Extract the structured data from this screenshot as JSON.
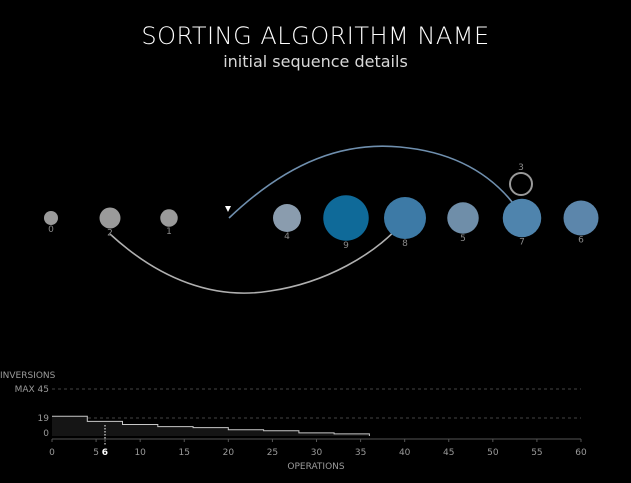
{
  "header": {
    "title": "SORTING ALGORITHM NAME",
    "subtitle": "initial sequence details"
  },
  "sequence": {
    "items": [
      {
        "label": "0",
        "value": 0,
        "color": "#9a9a9a"
      },
      {
        "label": "2",
        "value": 2,
        "color": "#9a9a9a"
      },
      {
        "label": "1",
        "value": 1,
        "color": "#9a9a9a"
      },
      {
        "label": "",
        "value": null,
        "color": "#000000"
      },
      {
        "label": "4",
        "value": 4,
        "color": "#8a9cae"
      },
      {
        "label": "9",
        "value": 9,
        "color": "#0f6a99"
      },
      {
        "label": "8",
        "value": 8,
        "color": "#3d7aa6"
      },
      {
        "label": "5",
        "value": 5,
        "color": "#6f8ea9"
      },
      {
        "label": "7",
        "value": 7,
        "color": "#4f84ad"
      },
      {
        "label": "6",
        "value": 6,
        "color": "#5c86ab"
      }
    ],
    "held": {
      "label": "3",
      "value": 3
    },
    "arrow_color": "#6f8fae",
    "arc_color": "#b0b0b0"
  },
  "inversions_chart": {
    "axis_title": "INVERSIONS",
    "max_label": "MAX 45",
    "mark_labels": [
      "19",
      "0"
    ],
    "x_ticks": [
      "0",
      "5",
      "6",
      "10",
      "15",
      "20",
      "25",
      "30",
      "35",
      "40",
      "45",
      "50",
      "55",
      "60"
    ],
    "x_title": "OPERATIONS"
  },
  "chart_data": {
    "type": "area",
    "title": "",
    "xlabel": "OPERATIONS",
    "ylabel": "INVERSIONS",
    "xlim": [
      0,
      60
    ],
    "ylim": [
      0,
      45
    ],
    "max_line": 45,
    "current_operation": 6,
    "x": [
      0,
      2,
      4,
      6,
      8,
      10,
      12,
      14,
      16,
      18,
      20,
      22,
      24,
      26,
      28,
      30,
      32,
      34,
      36
    ],
    "y": [
      19,
      19,
      14,
      14,
      11,
      11,
      9,
      9,
      8,
      8,
      6,
      6,
      5,
      5,
      3,
      3,
      2,
      2,
      0
    ]
  }
}
